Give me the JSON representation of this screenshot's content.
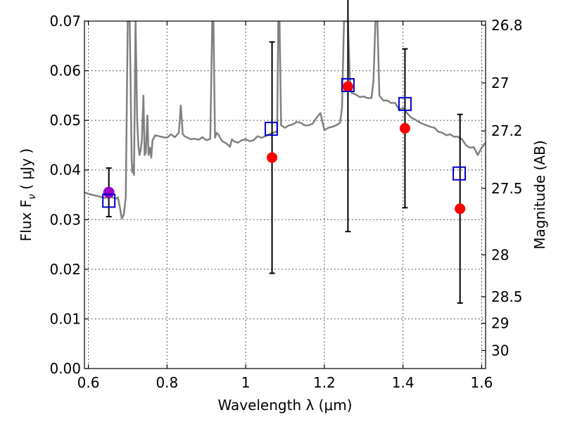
{
  "chart_data": {
    "type": "scatter",
    "title": "",
    "xlabel": "Wavelength  λ (μm)",
    "ylabel": "Flux  F",
    "ylabel_sub": "ν",
    "ylabel_unit": " ( μJy )",
    "y2label": "Magnitude (AB)",
    "xlim": [
      0.59,
      1.61
    ],
    "ylim": [
      0.0,
      0.07
    ],
    "grid": true,
    "x_ticks": [
      0.6,
      0.8,
      1.0,
      1.2,
      1.4,
      1.6
    ],
    "x_tick_labels": [
      "0.6",
      "0.8",
      "1",
      "1.2",
      "1.4",
      "1.6"
    ],
    "y_ticks": [
      0.0,
      0.01,
      0.02,
      0.03,
      0.04,
      0.05,
      0.06,
      0.07
    ],
    "y_tick_labels": [
      "0.00",
      "0.01",
      "0.02",
      "0.03",
      "0.04",
      "0.05",
      "0.06",
      "0.07"
    ],
    "y2_ticks": [
      26.8,
      27,
      27.2,
      27.5,
      28,
      28.5,
      29,
      30
    ],
    "y2_tick_labels": [
      "26.8",
      "27",
      "27.2",
      "27.5",
      "28",
      "28.5",
      "29",
      "30"
    ],
    "colors": {
      "spectrum": "#808080",
      "observed": "#ff0000",
      "model": "#0000cc",
      "highlight": "#9900cc",
      "errorbar": "#000000"
    },
    "series": [
      {
        "kind": "line",
        "x": [
          0.59,
          0.6,
          0.62,
          0.64,
          0.66,
          0.67,
          0.675,
          0.68,
          0.685,
          0.69,
          0.695,
          0.7,
          0.705,
          0.71,
          0.712,
          0.714,
          0.716,
          0.72,
          0.722,
          0.724,
          0.727,
          0.73,
          0.733,
          0.736,
          0.74,
          0.743,
          0.746,
          0.75,
          0.753,
          0.757,
          0.76,
          0.763,
          0.767,
          0.77,
          0.78,
          0.79,
          0.8,
          0.81,
          0.82,
          0.83,
          0.835,
          0.84,
          0.845,
          0.85,
          0.86,
          0.87,
          0.88,
          0.89,
          0.9,
          0.91,
          0.915,
          0.918,
          0.922,
          0.926,
          0.93,
          0.94,
          0.95,
          0.96,
          0.965,
          0.97,
          0.98,
          0.99,
          1.0,
          1.01,
          1.02,
          1.03,
          1.04,
          1.05,
          1.06,
          1.07,
          1.08,
          1.083,
          1.086,
          1.09,
          1.1,
          1.11,
          1.12,
          1.13,
          1.14,
          1.15,
          1.16,
          1.17,
          1.18,
          1.19,
          1.2,
          1.21,
          1.22,
          1.23,
          1.24,
          1.245,
          1.25,
          1.255,
          1.26,
          1.265,
          1.27,
          1.28,
          1.29,
          1.3,
          1.31,
          1.32,
          1.325,
          1.33,
          1.335,
          1.34,
          1.35,
          1.36,
          1.37,
          1.38,
          1.39,
          1.4,
          1.41,
          1.42,
          1.43,
          1.44,
          1.45,
          1.46,
          1.47,
          1.48,
          1.49,
          1.5,
          1.51,
          1.52,
          1.53,
          1.54,
          1.55,
          1.56,
          1.57,
          1.58,
          1.59,
          1.6,
          1.61
        ],
        "y": [
          0.0355,
          0.0352,
          0.0348,
          0.0344,
          0.0345,
          0.0342,
          0.0345,
          0.0325,
          0.0302,
          0.031,
          0.0345,
          0.07,
          0.07,
          0.042,
          0.0395,
          0.041,
          0.039,
          0.07,
          0.06,
          0.05,
          0.045,
          0.043,
          0.044,
          0.046,
          0.055,
          0.043,
          0.0435,
          0.051,
          0.043,
          0.0445,
          0.0425,
          0.046,
          0.0465,
          0.047,
          0.0468,
          0.0466,
          0.0465,
          0.0472,
          0.0466,
          0.0475,
          0.053,
          0.0472,
          0.0468,
          0.0466,
          0.0462,
          0.0463,
          0.0461,
          0.0466,
          0.046,
          0.0463,
          0.07,
          0.07,
          0.0465,
          0.0475,
          0.0472,
          0.0458,
          0.0454,
          0.0447,
          0.0462,
          0.0458,
          0.0455,
          0.046,
          0.0462,
          0.0458,
          0.046,
          0.0468,
          0.0465,
          0.0468,
          0.0472,
          0.0475,
          0.0478,
          0.07,
          0.07,
          0.049,
          0.0485,
          0.049,
          0.0492,
          0.0497,
          0.0495,
          0.049,
          0.049,
          0.0493,
          0.0505,
          0.0515,
          0.048,
          0.0485,
          0.0487,
          0.049,
          0.0495,
          0.0525,
          0.07,
          0.07,
          0.07,
          0.058,
          0.0555,
          0.0552,
          0.0547,
          0.0548,
          0.0545,
          0.0545,
          0.058,
          0.07,
          0.07,
          0.055,
          0.054,
          0.054,
          0.0535,
          0.0535,
          0.0522,
          0.0525,
          0.0515,
          0.0506,
          0.0502,
          0.0497,
          0.0493,
          0.049,
          0.0487,
          0.0485,
          0.0477,
          0.0475,
          0.047,
          0.0472,
          0.0467,
          0.0467,
          0.0462,
          0.045,
          0.0445,
          0.0446,
          0.043,
          0.0445,
          0.0455
        ]
      },
      {
        "kind": "points",
        "marker": "circle",
        "x": [
          1.067,
          1.26,
          1.405,
          1.545
        ],
        "y": [
          0.0425,
          0.0568,
          0.0484,
          0.0322
        ],
        "err": [
          0.0233,
          0.0292,
          0.016,
          0.019
        ]
      },
      {
        "kind": "points",
        "marker": "square",
        "x": [
          0.652,
          1.065,
          1.26,
          1.405,
          1.543
        ],
        "y": [
          0.0338,
          0.0483,
          0.0571,
          0.0533,
          0.0393
        ]
      },
      {
        "kind": "points",
        "marker": "circle",
        "x": [
          0.652
        ],
        "y": [
          0.0355
        ],
        "err": [
          0.0049
        ]
      }
    ]
  }
}
